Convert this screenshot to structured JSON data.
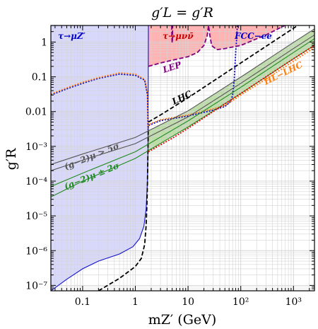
{
  "chart_data": {
    "type": "line",
    "title": "g′L = g′R",
    "xlabel": "mZ′  (GeV)",
    "ylabel": "g′R",
    "xscale": "log",
    "yscale": "log",
    "xlim": [
      0.025,
      2500
    ],
    "ylim": [
      7e-08,
      3
    ],
    "grid": true,
    "x_tick_labels": [
      "0.1",
      "1",
      "10",
      "10²",
      "10³"
    ],
    "x_ticks": [
      0.1,
      1,
      10,
      100,
      1000
    ],
    "y_tick_labels": [
      "10⁻⁷",
      "10⁻⁶",
      "10⁻⁵",
      "10⁻⁴",
      "10⁻³",
      "0.01",
      "0.1",
      "1"
    ],
    "y_ticks": [
      1e-07,
      1e-06,
      1e-05,
      0.0001,
      0.001,
      0.01,
      0.1,
      1
    ],
    "annotations": [
      {
        "text": "τ→μZ′",
        "color": "#0000cc"
      },
      {
        "text": "τ→μνν̄",
        "color": "#cc0000"
      },
      {
        "text": "FCC−ee",
        "color": "#0000cc"
      },
      {
        "text": "LEP",
        "color": "#800080"
      },
      {
        "text": "LHC",
        "color": "#000000"
      },
      {
        "text": "HL−LHC",
        "color": "#ff7f0e"
      },
      {
        "text": "(g−2)μ > 5σ",
        "color": "#555555"
      },
      {
        "text": "(g−2)μ ± 2σ",
        "color": "#228b22"
      }
    ],
    "series": [
      {
        "key": "tau_mu_zprime",
        "color": "#1111cc",
        "style": "solid",
        "x": [
          0.025,
          0.05,
          0.1,
          0.2,
          0.5,
          0.9,
          1.2,
          1.45,
          1.6,
          1.7,
          1.74,
          1.76,
          1.77
        ],
        "y": [
          7e-08,
          1.5e-07,
          3e-07,
          5e-07,
          8e-07,
          1.3e-06,
          2.2e-06,
          5e-06,
          1.5e-05,
          0.0001,
          0.001,
          0.1,
          3
        ]
      },
      {
        "key": "lhc",
        "color": "#000000",
        "style": "dashed",
        "x": [
          0.2,
          0.5,
          1.0,
          1.3,
          1.5,
          1.6,
          1.66,
          1.7,
          1.74,
          1.76,
          1.77,
          3,
          10,
          100,
          1000,
          2500
        ],
        "y": [
          7e-08,
          1.6e-07,
          3.5e-07,
          6e-07,
          1.5e-06,
          5e-06,
          2e-05,
          0.0001,
          0.001,
          0.004,
          0.005,
          0.008,
          0.025,
          0.25,
          2.5,
          6
        ]
      },
      {
        "key": "fcc_ee",
        "color": "#0000cc",
        "style": "dotted",
        "x": [
          0.025,
          0.05,
          0.1,
          0.2,
          0.5,
          1.0,
          1.5,
          1.7,
          1.75,
          1.77,
          3,
          10,
          30,
          50,
          65,
          70,
          75,
          80,
          84,
          86
        ],
        "y": [
          0.03,
          0.045,
          0.065,
          0.09,
          0.12,
          0.11,
          0.08,
          0.03,
          0.003,
          0.004,
          0.0055,
          0.0075,
          0.011,
          0.014,
          0.02,
          0.03,
          0.08,
          0.5,
          1.5,
          3
        ]
      },
      {
        "key": "hl_lhc",
        "color": "#ff7f0e",
        "style": "dotted",
        "x": [
          0.025,
          0.05,
          0.1,
          0.2,
          0.5,
          1.0,
          1.5,
          1.7,
          1.75,
          1.77,
          3,
          10,
          30,
          50,
          68,
          100,
          300,
          1000,
          2500
        ],
        "y": [
          0.032,
          0.048,
          0.07,
          0.095,
          0.13,
          0.12,
          0.085,
          0.033,
          0.0033,
          0.0042,
          0.0058,
          0.008,
          0.012,
          0.015,
          0.02,
          0.03,
          0.085,
          0.28,
          0.7
        ]
      },
      {
        "key": "lep",
        "color": "#800080",
        "style": "dashed",
        "x": [
          1.77,
          3,
          5,
          10,
          15,
          20,
          23,
          24.5,
          26,
          28,
          35,
          50,
          100,
          300,
          1000,
          2500
        ],
        "y": [
          0.2,
          0.25,
          0.3,
          0.38,
          0.5,
          0.8,
          1.5,
          3,
          1.5,
          0.8,
          0.6,
          0.65,
          0.8,
          1.6,
          4,
          8
        ]
      },
      {
        "key": "tau_mu_nu_nu",
        "color": "#800080",
        "style": "dashed",
        "x": [
          4.9,
          4.95,
          5,
          5.05,
          5.1
        ],
        "y": [
          3,
          1.2,
          0.95,
          1.2,
          3
        ]
      },
      {
        "key": "g2_5sigma_lower",
        "color": "#555555",
        "style": "solid",
        "x": [
          0.025,
          0.1,
          1.0,
          10,
          100,
          1000,
          2500
        ],
        "y": [
          0.0002,
          0.0004,
          0.0012,
          0.007,
          0.065,
          0.65,
          1.6
        ]
      },
      {
        "key": "g2_5sigma_upper",
        "color": "#555555",
        "style": "solid",
        "x": [
          0.025,
          0.1,
          1.0,
          10,
          100,
          1000,
          2500
        ],
        "y": [
          0.0003,
          0.0006,
          0.0018,
          0.0105,
          0.098,
          0.98,
          2.4
        ]
      },
      {
        "key": "g2_2sigma_lower",
        "color": "#228b22",
        "style": "solid",
        "x": [
          0.025,
          0.1,
          1.0,
          10,
          100,
          1000,
          2500
        ],
        "y": [
          3.5e-05,
          0.0001,
          0.00045,
          0.0036,
          0.033,
          0.33,
          0.82
        ]
      },
      {
        "key": "g2_2sigma_upper",
        "color": "#228b22",
        "style": "solid",
        "x": [
          0.025,
          0.1,
          1.0,
          10,
          100,
          1000,
          2500
        ],
        "y": [
          7e-05,
          0.00017,
          0.0007,
          0.0054,
          0.05,
          0.5,
          1.25
        ]
      },
      {
        "key": "red_dotted",
        "color": "#ee0000",
        "style": "dotted",
        "x": [
          1.77,
          3,
          5,
          10,
          30,
          100,
          300,
          1000,
          2500
        ],
        "y": [
          0.0007,
          0.0011,
          0.0017,
          0.0033,
          0.01,
          0.033,
          0.1,
          0.33,
          0.8
        ]
      }
    ],
    "regions": [
      {
        "key": "tau_mu_zprime_excluded",
        "fill": "#d8d8fa"
      },
      {
        "key": "tau_mu_nu_nu_excluded",
        "fill": "#ffb3b3"
      },
      {
        "key": "lep_excluded",
        "fill": "#ffb3b3"
      },
      {
        "key": "g2_allowed_band",
        "fill": "#a8d08d"
      }
    ]
  }
}
